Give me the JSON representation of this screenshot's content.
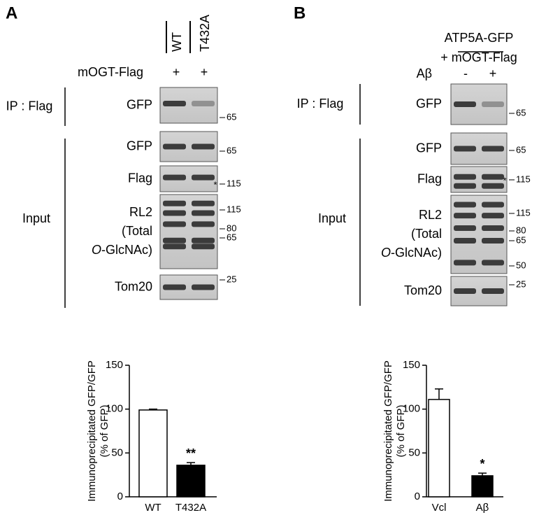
{
  "panels": [
    {
      "label": "A",
      "lanes": [
        "WT",
        "T432A"
      ],
      "treatment": "mOGT-Flag",
      "treatment_signs": [
        "+",
        "+"
      ],
      "ip_label": "IP : Flag",
      "input_label": "Input",
      "blots": [
        {
          "label": [
            "GFP"
          ],
          "markers": [
            65
          ]
        },
        {
          "label": [
            "GFP"
          ],
          "markers": [
            65
          ]
        },
        {
          "label": [
            "Flag"
          ],
          "asterisk": "*",
          "markers": [
            115
          ]
        },
        {
          "label": [
            "RL2",
            "(Total"
          ],
          "label_italic": "O",
          "label_rest": "-GlcNAc)",
          "markers": [
            115,
            80,
            65
          ]
        },
        {
          "label": [
            "Tom20"
          ],
          "markers": [
            25
          ]
        }
      ]
    },
    {
      "label": "B",
      "header": [
        "ATP5A-GFP",
        "+ mOGT-Flag"
      ],
      "treatment": "Aβ",
      "treatment_signs": [
        "-",
        "+"
      ],
      "ip_label": "IP : Flag",
      "input_label": "Input",
      "blots": [
        {
          "label": [
            "GFP"
          ],
          "markers": [
            65
          ]
        },
        {
          "label": [
            "GFP"
          ],
          "markers": [
            65
          ]
        },
        {
          "label": [
            "Flag"
          ],
          "asterisk": "*",
          "markers": [
            115
          ]
        },
        {
          "label": [
            "RL2",
            "(Total"
          ],
          "label_italic": "O",
          "label_rest": "-GlcNAc)",
          "markers": [
            115,
            80,
            65,
            50
          ]
        },
        {
          "label": [
            "Tom20"
          ],
          "markers": [
            25
          ]
        }
      ]
    }
  ],
  "chart_data": [
    {
      "type": "bar",
      "y_label": [
        "Immunoprecipitated GFP/GFP",
        "(% of GFP)"
      ],
      "categories": [
        "WT",
        "T432A"
      ],
      "values": [
        99,
        36
      ],
      "errors": [
        1,
        3
      ],
      "colors": [
        "#ffffff",
        "#000000"
      ],
      "annotations": [
        null,
        "**"
      ],
      "ylim": [
        0,
        150
      ],
      "yticks": [
        0,
        50,
        100,
        150
      ]
    },
    {
      "type": "bar",
      "y_label": [
        "Immunoprecipitated GFP/GFP",
        "(% of GFP)"
      ],
      "categories": [
        "Vcl",
        "Aβ"
      ],
      "values": [
        111,
        24
      ],
      "errors": [
        12,
        3
      ],
      "colors": [
        "#ffffff",
        "#000000"
      ],
      "annotations": [
        null,
        "*"
      ],
      "ylim": [
        0,
        150
      ],
      "yticks": [
        0,
        50,
        100,
        150
      ]
    }
  ]
}
